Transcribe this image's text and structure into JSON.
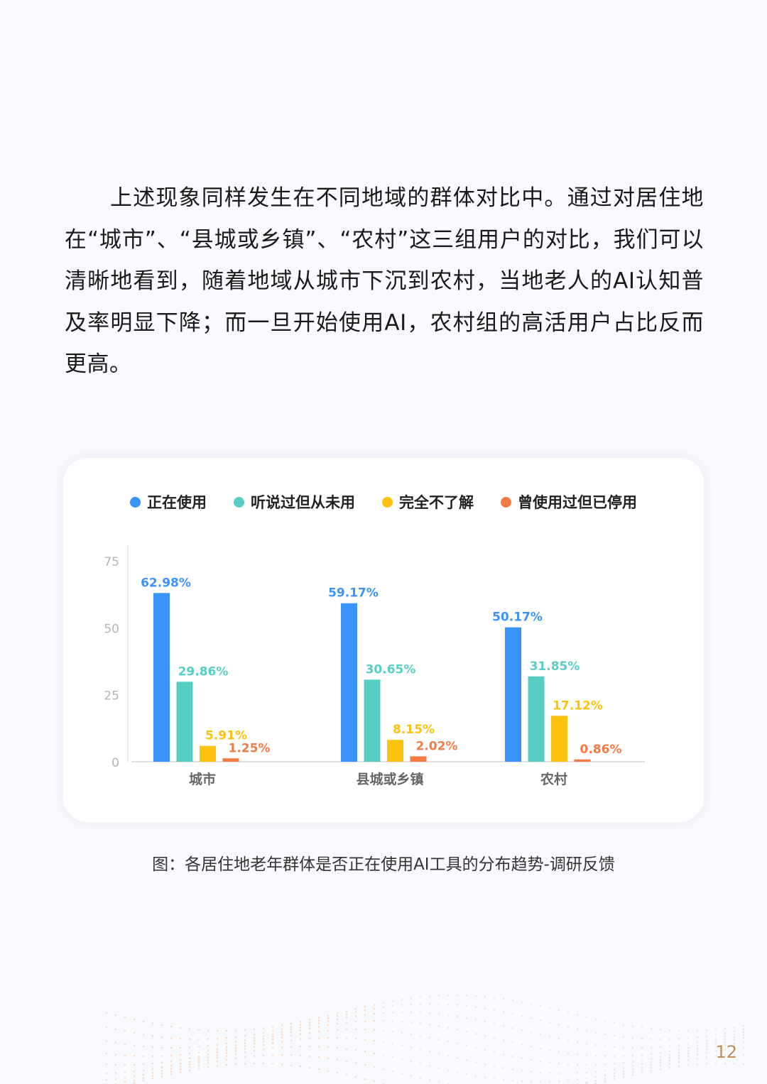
{
  "paragraph": "上述现象同样发生在不同地域的群体对比中。通过对居住地在“城市”、“县城或乡镇”、“农村”这三组用户的对比，我们可以清晰地看到，随着地域从城市下沉到农村，当地老人的AI认知普及率明显下降；而一旦开始使用AI，农村组的高活用户占比反而更高。",
  "caption": "图：各居住地老年群体是否正在使用AI工具的分布趋势-调研反馈",
  "page_number": "12",
  "chart_data": {
    "type": "bar",
    "categories": [
      "城市",
      "县城或乡镇",
      "农村"
    ],
    "series": [
      {
        "name": "正在使用",
        "color": "#3a92fb",
        "values": [
          62.98,
          59.17,
          50.17
        ],
        "labels": [
          "62.98%",
          "59.17%",
          "50.17%"
        ]
      },
      {
        "name": "听说过但从未用",
        "color": "#57cec5",
        "values": [
          29.86,
          30.65,
          31.85
        ],
        "labels": [
          "29.86%",
          "30.65%",
          "31.85%"
        ]
      },
      {
        "name": "完全不了解",
        "color": "#fdc20d",
        "values": [
          5.91,
          8.15,
          17.12
        ],
        "labels": [
          "5.91%",
          "8.15%",
          "17.12%"
        ]
      },
      {
        "name": "曾使用过但已停用",
        "color": "#f47a43",
        "values": [
          1.25,
          2.02,
          0.86
        ],
        "labels": [
          "1.25%",
          "2.02%",
          "0.86%"
        ]
      }
    ],
    "yticks": [
      "0",
      "25",
      "50",
      "75"
    ],
    "ylim": [
      0,
      75
    ],
    "legend": "top",
    "grid": false
  }
}
